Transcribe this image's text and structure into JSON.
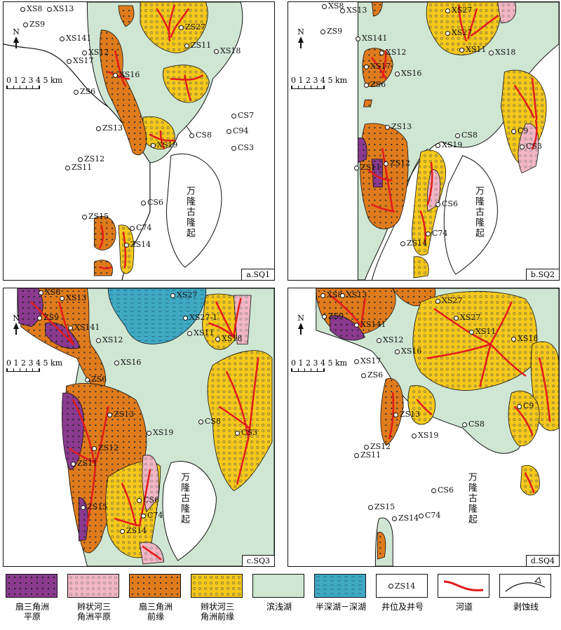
{
  "panels": [
    {
      "label": "a.SQ1"
    },
    {
      "label": "b.SQ2"
    },
    {
      "label": "c.SQ3"
    },
    {
      "label": "d.SQ4"
    }
  ],
  "north": "N",
  "scale_text": "0 1 2 3 4 5 km",
  "uplift_text": "万隆古隆起",
  "wells": {
    "a": [
      "XS8",
      "XS13",
      "ZS9",
      "XS141",
      "XS12",
      "XS17",
      "XS16",
      "ZS6",
      "ZS27",
      "ZS11",
      "XS18",
      "CS7",
      "C94",
      "CS3",
      "CS8",
      "ZS13",
      "XS19",
      "ZS12",
      "ZS11",
      "CS6",
      "ZS15",
      "C74",
      "ZS14"
    ],
    "b": [
      "XS8",
      "XS13",
      "ZS9",
      "XS141",
      "XS12",
      "XS17",
      "XS16",
      "ZS6",
      "XS27",
      "XS27",
      "XS11",
      "XS18",
      "CS8",
      "C9",
      "CS3",
      "ZS13",
      "XS19",
      "ZS11",
      "ZS12",
      "CS6",
      "C74",
      "ZS14"
    ],
    "c": [
      "XS8",
      "XS13",
      "ZS9",
      "XS141",
      "XS12",
      "XS16",
      "ZS6",
      "XS27",
      "XS27-1",
      "XS11",
      "XS18",
      "ZS13",
      "CS8",
      "CS3",
      "XS19",
      "ZS12",
      "ZS11",
      "CS6",
      "ZS15",
      "C74",
      "ZS14"
    ],
    "d": [
      "XS8",
      "XS13",
      "ZS9",
      "XS141",
      "XS12",
      "XS16",
      "XS17",
      "ZS6",
      "XS27",
      "XS27",
      "XS11",
      "XS18",
      "ZS13",
      "CS8",
      "XS19",
      "ZS12",
      "ZS11",
      "C9",
      "CS6",
      "ZS15",
      "ZS14",
      "C74"
    ]
  },
  "legend": [
    {
      "label": "扇三角洲\n平原",
      "color": "#8b3a8f"
    },
    {
      "label": "辫状河三\n角洲平原",
      "color": "#f2b6c4"
    },
    {
      "label": "扇三角洲\n前缘",
      "color": "#e07b1c"
    },
    {
      "label": "辫状河三\n角洲前缘",
      "color": "#f6c91a"
    },
    {
      "label": "滨浅湖",
      "color": "#cfe6d3"
    },
    {
      "label": "半深湖－深湖",
      "color": "#3fa9c4"
    },
    {
      "label": "井位及井号",
      "sample": "ZS14"
    },
    {
      "label": "河道",
      "color": "#e21b1b"
    },
    {
      "label": "剥蚀线"
    }
  ]
}
